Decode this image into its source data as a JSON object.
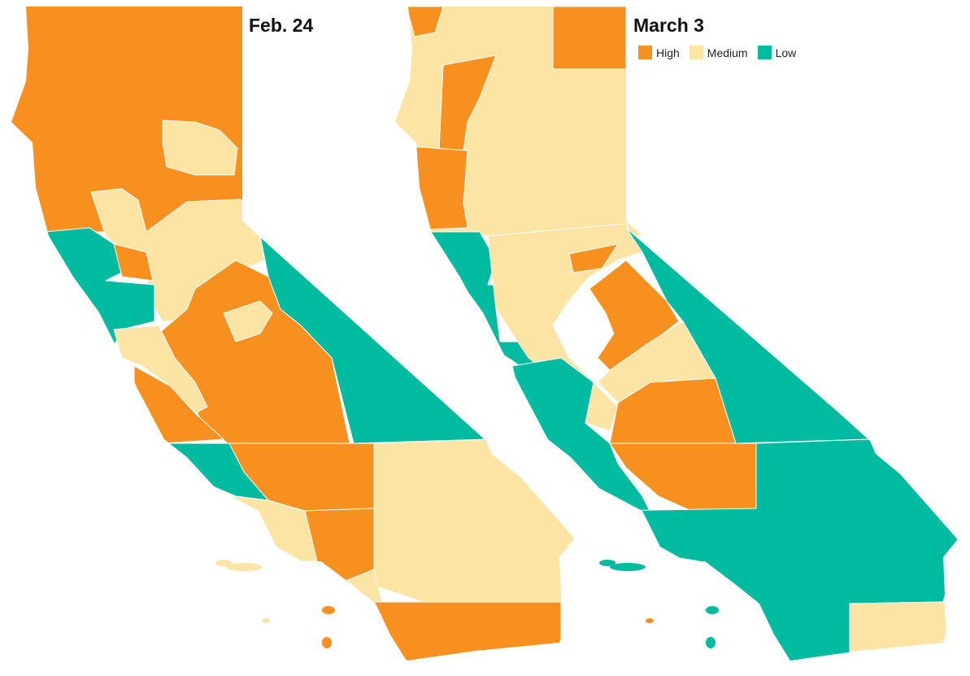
{
  "colors": {
    "high": "#F7901E",
    "medium": "#FCE4A4",
    "low": "#00BBA0"
  },
  "left_map": {
    "title": "Feb. 24"
  },
  "right_map": {
    "title": "March 3"
  },
  "legend": [
    {
      "label": "High",
      "level": "high"
    },
    {
      "label": "Medium",
      "level": "medium"
    },
    {
      "label": "Low",
      "level": "low"
    }
  ]
}
